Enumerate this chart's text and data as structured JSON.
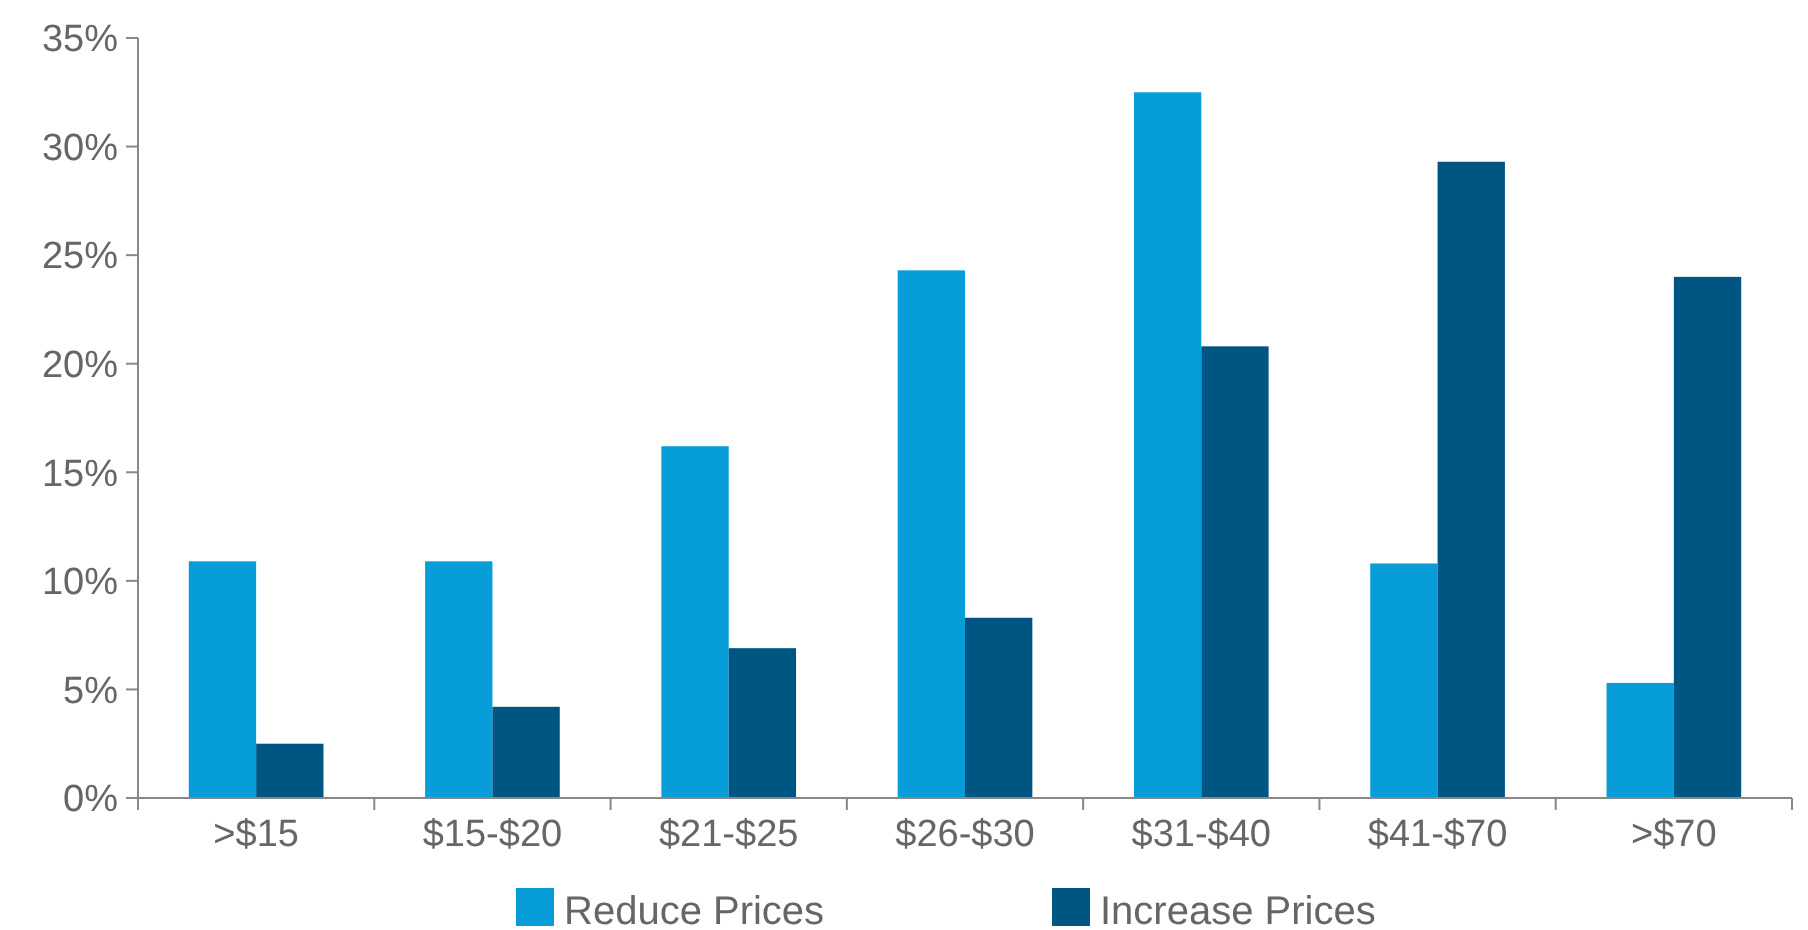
{
  "chart_data": {
    "type": "bar",
    "categories": [
      ">$15",
      "$15-$20",
      "$21-$25",
      "$26-$30",
      "$31-$40",
      "$41-$70",
      ">$70"
    ],
    "series": [
      {
        "name": "Reduce Prices",
        "color": "#069dd9",
        "values": [
          10.9,
          10.9,
          16.2,
          24.3,
          32.5,
          10.8,
          5.3
        ]
      },
      {
        "name": "Increase Prices",
        "color": "#005683",
        "values": [
          2.5,
          4.2,
          6.9,
          8.3,
          20.8,
          29.3,
          24.0
        ]
      }
    ],
    "ylim": [
      0,
      35
    ],
    "yticks": [
      {
        "value": 0,
        "label": "0%"
      },
      {
        "value": 5,
        "label": "5%"
      },
      {
        "value": 10,
        "label": "10%"
      },
      {
        "value": 15,
        "label": "15%"
      },
      {
        "value": 20,
        "label": "20%"
      },
      {
        "value": 25,
        "label": "25%"
      },
      {
        "value": 30,
        "label": "30%"
      },
      {
        "value": 35,
        "label": "35%"
      }
    ],
    "grid": false,
    "legend": "bottom"
  }
}
